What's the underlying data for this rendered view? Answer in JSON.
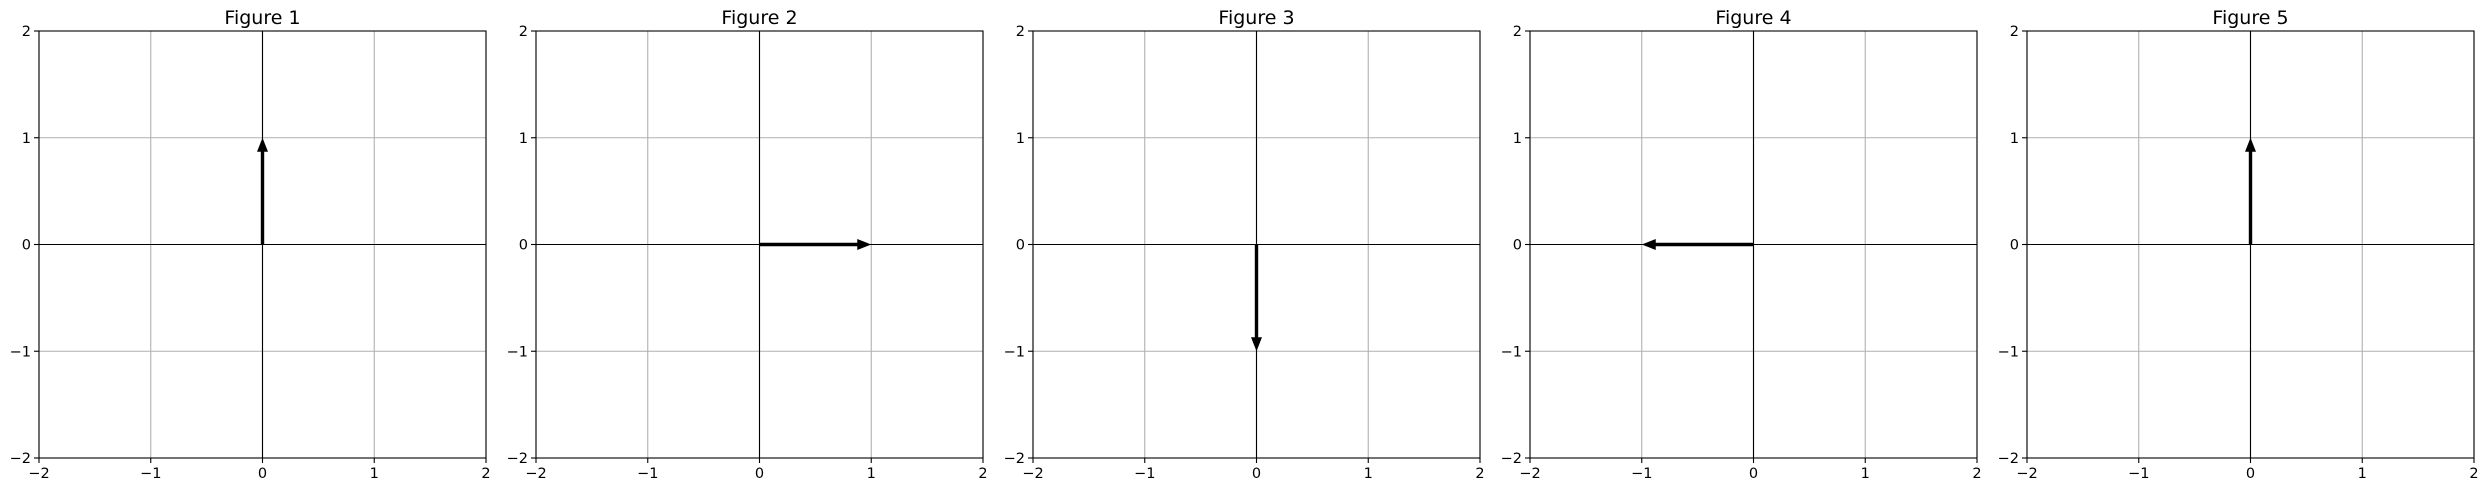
{
  "chart_data": [
    {
      "type": "quiver",
      "title": "Figure 1",
      "xlim": [
        -2,
        2
      ],
      "ylim": [
        -2,
        2
      ],
      "xticks": [
        -2,
        -1,
        0,
        1,
        2
      ],
      "yticks": [
        -2,
        -1,
        0,
        1,
        2
      ],
      "tick_labels": [
        "−2",
        "−1",
        "0",
        "1",
        "2"
      ],
      "grid": true,
      "zero_axes": true,
      "vector": {
        "x0": 0,
        "y0": 0,
        "dx": 0,
        "dy": 1
      }
    },
    {
      "type": "quiver",
      "title": "Figure 2",
      "xlim": [
        -2,
        2
      ],
      "ylim": [
        -2,
        2
      ],
      "xticks": [
        -2,
        -1,
        0,
        1,
        2
      ],
      "yticks": [
        -2,
        -1,
        0,
        1,
        2
      ],
      "tick_labels": [
        "−2",
        "−1",
        "0",
        "1",
        "2"
      ],
      "grid": true,
      "zero_axes": true,
      "vector": {
        "x0": 0,
        "y0": 0,
        "dx": 1,
        "dy": 0
      }
    },
    {
      "type": "quiver",
      "title": "Figure 3",
      "xlim": [
        -2,
        2
      ],
      "ylim": [
        -2,
        2
      ],
      "xticks": [
        -2,
        -1,
        0,
        1,
        2
      ],
      "yticks": [
        -2,
        -1,
        0,
        1,
        2
      ],
      "tick_labels": [
        "−2",
        "−1",
        "0",
        "1",
        "2"
      ],
      "grid": true,
      "zero_axes": true,
      "vector": {
        "x0": 0,
        "y0": 0,
        "dx": 0,
        "dy": -1
      }
    },
    {
      "type": "quiver",
      "title": "Figure 4",
      "xlim": [
        -2,
        2
      ],
      "ylim": [
        -2,
        2
      ],
      "xticks": [
        -2,
        -1,
        0,
        1,
        2
      ],
      "yticks": [
        -2,
        -1,
        0,
        1,
        2
      ],
      "tick_labels": [
        "−2",
        "−1",
        "0",
        "1",
        "2"
      ],
      "grid": true,
      "zero_axes": true,
      "vector": {
        "x0": 0,
        "y0": 0,
        "dx": -1,
        "dy": 0
      }
    },
    {
      "type": "quiver",
      "title": "Figure 5",
      "xlim": [
        -2,
        2
      ],
      "ylim": [
        -2,
        2
      ],
      "xticks": [
        -2,
        -1,
        0,
        1,
        2
      ],
      "yticks": [
        -2,
        -1,
        0,
        1,
        2
      ],
      "tick_labels": [
        "−2",
        "−1",
        "0",
        "1",
        "2"
      ],
      "grid": true,
      "zero_axes": true,
      "vector": {
        "x0": 0,
        "y0": 0,
        "dx": 0,
        "dy": 1
      }
    }
  ],
  "colors": {
    "background": "#ffffff",
    "grid": "#b0b0b0",
    "zero_axis": "#000000",
    "spine": "#000000",
    "arrow": "#000000",
    "text": "#000000"
  }
}
